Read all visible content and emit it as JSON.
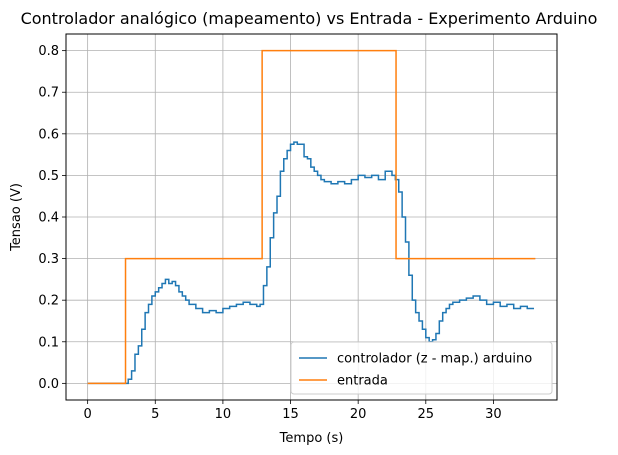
{
  "chart_data": {
    "type": "line",
    "title": "Controlador analógico (mapeamento) vs Entrada - Experimento Arduino",
    "xlabel": "Tempo (s)",
    "ylabel": "Tensao (V)",
    "xlim": [
      -1.6,
      34.7
    ],
    "ylim": [
      -0.04,
      0.84
    ],
    "xticks": [
      0,
      5,
      10,
      15,
      20,
      25,
      30
    ],
    "yticks": [
      0.0,
      0.1,
      0.2,
      0.3,
      0.4,
      0.5,
      0.6,
      0.7,
      0.8
    ],
    "xtick_labels": [
      "0",
      "5",
      "10",
      "15",
      "20",
      "25",
      "30"
    ],
    "ytick_labels": [
      "0.0",
      "0.1",
      "0.2",
      "0.3",
      "0.4",
      "0.5",
      "0.6",
      "0.7",
      "0.8"
    ],
    "grid": true,
    "legend_position": "lower-right",
    "step": true,
    "series": [
      {
        "name": "controlador (z - map.) arduino",
        "color": "#1f77b4",
        "x": [
          0,
          3,
          3.25,
          3.5,
          3.75,
          4,
          4.25,
          4.5,
          4.75,
          5,
          5.25,
          5.5,
          5.75,
          6,
          6.25,
          6.5,
          6.75,
          7,
          7.25,
          7.5,
          8,
          8.5,
          9,
          9.5,
          10,
          10.5,
          11,
          11.5,
          12,
          12.5,
          12.75,
          13,
          13.25,
          13.5,
          13.75,
          14,
          14.25,
          14.5,
          14.75,
          15,
          15.25,
          15.5,
          16,
          16.25,
          16.5,
          16.75,
          17,
          17.25,
          17.5,
          18,
          18.5,
          19,
          19.5,
          20,
          20.5,
          21,
          21.5,
          22,
          22.5,
          22.75,
          23,
          23.25,
          23.5,
          23.75,
          24,
          24.25,
          24.5,
          24.75,
          25,
          25.25,
          25.5,
          25.75,
          26,
          26.25,
          26.5,
          26.75,
          27,
          27.5,
          28,
          28.5,
          29,
          29.5,
          30,
          30.5,
          31,
          31.5,
          32,
          32.5,
          33
        ],
        "y": [
          0.0,
          0.01,
          0.03,
          0.07,
          0.09,
          0.13,
          0.17,
          0.19,
          0.21,
          0.22,
          0.23,
          0.24,
          0.25,
          0.24,
          0.245,
          0.235,
          0.22,
          0.21,
          0.2,
          0.19,
          0.18,
          0.17,
          0.175,
          0.17,
          0.18,
          0.185,
          0.19,
          0.195,
          0.19,
          0.185,
          0.19,
          0.235,
          0.28,
          0.35,
          0.41,
          0.45,
          0.51,
          0.54,
          0.56,
          0.575,
          0.58,
          0.575,
          0.545,
          0.54,
          0.52,
          0.51,
          0.5,
          0.49,
          0.485,
          0.48,
          0.485,
          0.48,
          0.49,
          0.5,
          0.495,
          0.5,
          0.49,
          0.51,
          0.5,
          0.49,
          0.46,
          0.4,
          0.34,
          0.26,
          0.2,
          0.17,
          0.15,
          0.13,
          0.11,
          0.1,
          0.105,
          0.12,
          0.15,
          0.17,
          0.18,
          0.19,
          0.195,
          0.2,
          0.205,
          0.21,
          0.2,
          0.19,
          0.195,
          0.185,
          0.19,
          0.18,
          0.185,
          0.18,
          0.18
        ]
      },
      {
        "name": "entrada",
        "color": "#ff7f0e",
        "x": [
          0,
          2.8,
          12.9,
          22.8,
          33.1
        ],
        "y": [
          0.0,
          0.3,
          0.8,
          0.3,
          0.3
        ]
      }
    ]
  }
}
